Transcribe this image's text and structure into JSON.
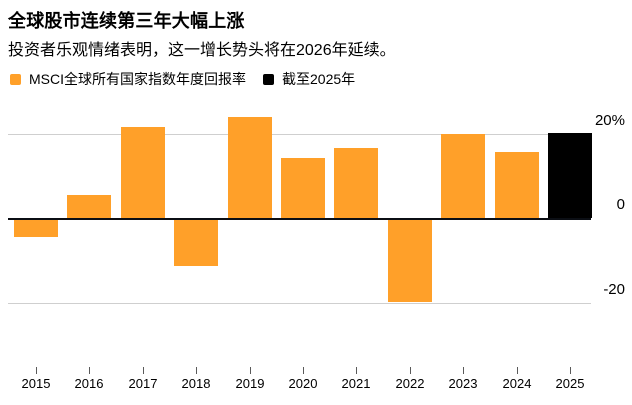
{
  "header": {
    "title": "全球股市连续第三年大幅上涨",
    "subtitle": "投资者乐观情绪表明，这一增长势头将在2026年延续。"
  },
  "legend": {
    "items": [
      {
        "label": "MSCI全球所有国家指数年度回报率",
        "color": "#FFA029"
      },
      {
        "label": "截至2025年",
        "color": "#000000"
      }
    ]
  },
  "chart_data": {
    "type": "bar",
    "title": "全球股市连续第三年大幅上涨",
    "subtitle": "投资者乐观情绪表明，这一增长势头将在2026年延续。",
    "categories": [
      "2015",
      "2016",
      "2017",
      "2018",
      "2019",
      "2020",
      "2021",
      "2022",
      "2023",
      "2024",
      "2025"
    ],
    "series": [
      {
        "name": "MSCI全球所有国家指数年度回报率",
        "values": [
          -4.3,
          5.6,
          21.6,
          -11.2,
          24.0,
          14.3,
          16.8,
          -19.8,
          20.1,
          15.7,
          20.3
        ]
      }
    ],
    "bar_colors": [
      "#FFA029",
      "#FFA029",
      "#FFA029",
      "#FFA029",
      "#FFA029",
      "#FFA029",
      "#FFA029",
      "#FFA029",
      "#FFA029",
      "#FFA029",
      "#000000"
    ],
    "highlighted_category": "2025",
    "highlight_label": "截至2025年",
    "xlabel": "",
    "ylabel": "",
    "yticks": [
      {
        "value": 20,
        "label": "20%"
      },
      {
        "value": 0,
        "label": "0"
      },
      {
        "value": -20,
        "label": "-20"
      }
    ],
    "ylim": [
      -26,
      27
    ],
    "grid": "horizontal",
    "legend_position": "top",
    "colors": {
      "bar": "#FFA029",
      "highlight": "#000000",
      "grid": "#cfcfcf",
      "zero_line": "#0b0e14",
      "background": "#ffffff",
      "text": "#000000"
    }
  }
}
